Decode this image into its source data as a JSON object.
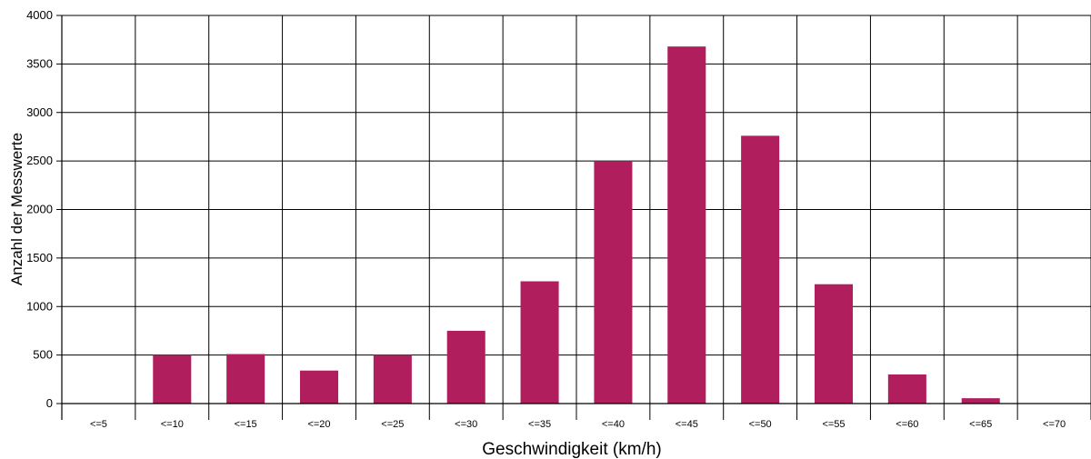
{
  "chart_data": {
    "type": "bar",
    "title": "",
    "xlabel": "Geschwindigkeit (km/h)",
    "ylabel": "Anzahl der Messwerte",
    "ylim": [
      0,
      4000
    ],
    "yticks": [
      0,
      500,
      1000,
      1500,
      2000,
      2500,
      3000,
      3500,
      4000
    ],
    "grid": true,
    "legend": "none",
    "bar_color": "#b01e5e",
    "categories": [
      "<=5",
      "<=10",
      "<=15",
      "<=20",
      "<=25",
      "<=30",
      "<=35",
      "<=40",
      "<=45",
      "<=50",
      "<=55",
      "<=60",
      "<=65",
      "<=70"
    ],
    "values": [
      0,
      500,
      510,
      340,
      500,
      750,
      1260,
      2500,
      3680,
      2760,
      1230,
      300,
      55,
      0
    ]
  }
}
